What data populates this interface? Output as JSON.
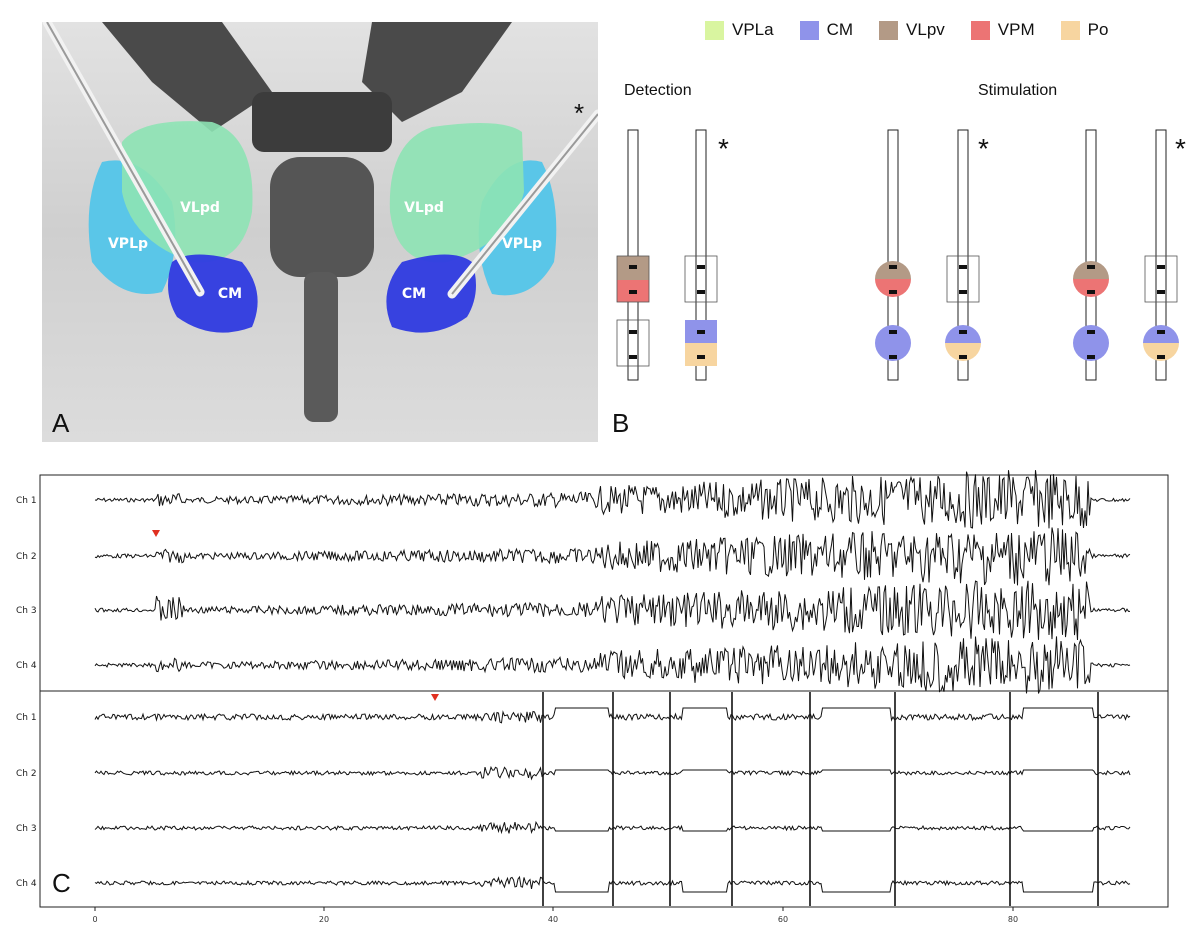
{
  "panel_labels": {
    "a": "A",
    "b": "B",
    "c": "C"
  },
  "panelA": {
    "asterisk": "*",
    "left_labels": {
      "vpl": "VLpd",
      "vplp": "VPLp",
      "cm": "CM"
    },
    "right_labels": {
      "vpl": "VLpd",
      "vplp": "VPLp",
      "cm": "CM"
    }
  },
  "legend": [
    {
      "label": "VPLa",
      "color": "#d9f5a0"
    },
    {
      "label": "CM",
      "color": "#8f93ea"
    },
    {
      "label": "VLpv",
      "color": "#b39a86"
    },
    {
      "label": "VPM",
      "color": "#ec7474"
    },
    {
      "label": "Po",
      "color": "#f7d5a0"
    }
  ],
  "panelB": {
    "detection_title": "Detection",
    "stimulation_title": "Stimulation",
    "asterisk": "*"
  },
  "panelC": {
    "top_channels": [
      "Ch 1",
      "Ch 2",
      "Ch 3",
      "Ch 4"
    ],
    "bottom_channels": [
      "Ch 1",
      "Ch 2",
      "Ch 3",
      "Ch 4"
    ],
    "x_ticks": [
      "0",
      "20",
      "40",
      "60",
      "80"
    ],
    "marker_color": "#e03020"
  }
}
